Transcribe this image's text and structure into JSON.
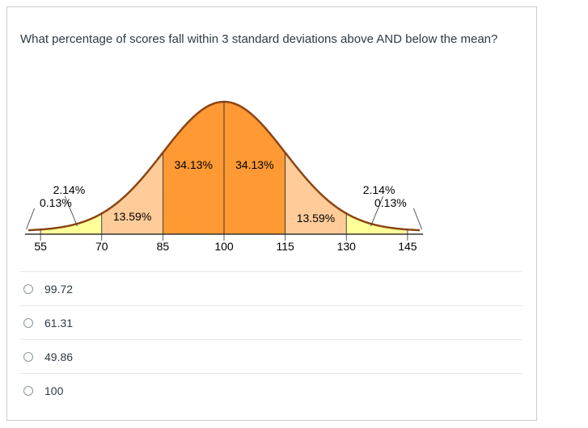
{
  "question": {
    "text": "What percentage of scores fall within 3 standard deviations above AND below the mean?"
  },
  "chart_data": {
    "type": "area",
    "title": "",
    "xlabel": "",
    "ylabel": "",
    "x_ticks": [
      55,
      70,
      85,
      100,
      115,
      130,
      145
    ],
    "xlim": [
      52,
      148
    ],
    "mean": 100,
    "sd": 15,
    "regions": [
      {
        "from": 55,
        "to": 70,
        "label": "2.14%",
        "color": "#ffff99"
      },
      {
        "from": 70,
        "to": 85,
        "label": "13.59%",
        "color": "#ffcc99"
      },
      {
        "from": 85,
        "to": 100,
        "label": "34.13%",
        "color": "#ff9933"
      },
      {
        "from": 100,
        "to": 115,
        "label": "34.13%",
        "color": "#ff9933"
      },
      {
        "from": 115,
        "to": 130,
        "label": "13.59%",
        "color": "#ffcc99"
      },
      {
        "from": 130,
        "to": 145,
        "label": "2.14%",
        "color": "#ffff99"
      }
    ],
    "tail_labels": {
      "left": "0.13%",
      "right": "0.13%"
    },
    "curve_color": "#8b4513"
  },
  "answers": [
    {
      "label": "99.72"
    },
    {
      "label": "61.31"
    },
    {
      "label": "49.86"
    },
    {
      "label": "100"
    }
  ]
}
